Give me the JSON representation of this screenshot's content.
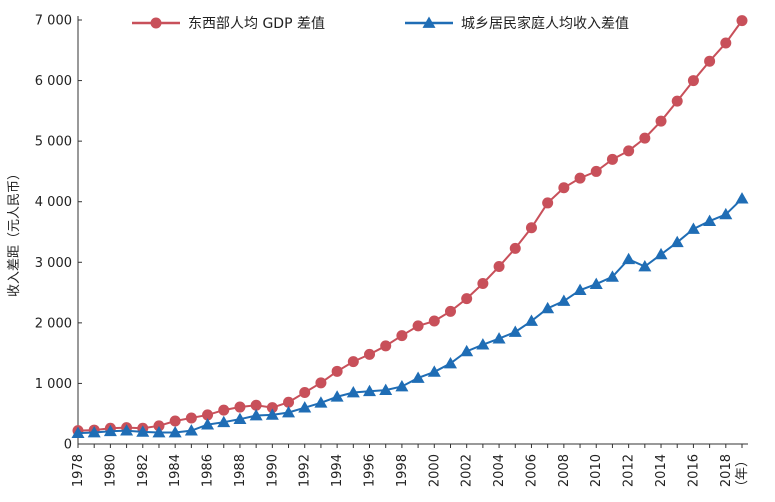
{
  "chart_data": {
    "type": "line",
    "ylabel": "收入差距（元人民币）",
    "x_unit_label": "（年）",
    "ylim": [
      0,
      7000
    ],
    "yticks": [
      "0",
      "1 000",
      "2 000",
      "3 000",
      "4 000",
      "5 000",
      "6 000",
      "7 000"
    ],
    "x_tick_labels": [
      "1978",
      "1980",
      "1982",
      "1984",
      "1986",
      "1988",
      "1990",
      "1992",
      "1994",
      "1996",
      "1998",
      "2000",
      "2002",
      "2004",
      "2006",
      "2008",
      "2010",
      "2012",
      "2014",
      "2016",
      "2018"
    ],
    "x": [
      1978,
      1979,
      1980,
      1981,
      1982,
      1983,
      1984,
      1985,
      1986,
      1987,
      1988,
      1989,
      1990,
      1991,
      1992,
      1993,
      1994,
      1995,
      1996,
      1997,
      1998,
      1999,
      2000,
      2001,
      2002,
      2003,
      2004,
      2005,
      2006,
      2007,
      2008,
      2009,
      2010,
      2011,
      2012,
      2013,
      2014,
      2015,
      2016,
      2017,
      2018,
      2019
    ],
    "series": [
      {
        "name": "东西部人均 GDP 差值",
        "color": "#c8505a",
        "marker": "circle",
        "values": [
          220,
          230,
          260,
          270,
          260,
          300,
          380,
          430,
          480,
          560,
          610,
          640,
          600,
          690,
          850,
          1010,
          1200,
          1360,
          1480,
          1620,
          1790,
          1950,
          2030,
          2190,
          2400,
          2650,
          2930,
          3230,
          3570,
          3980,
          4230,
          4390,
          4500,
          4700,
          4840,
          5050,
          5330,
          5660,
          6000,
          6320,
          6620,
          6990
        ]
      },
      {
        "name": "城乡居民家庭人均收入差值",
        "color": "#1f6db5",
        "marker": "triangle",
        "values": [
          180,
          190,
          210,
          220,
          200,
          190,
          190,
          220,
          320,
          360,
          410,
          470,
          480,
          520,
          600,
          680,
          780,
          850,
          870,
          890,
          950,
          1090,
          1190,
          1330,
          1530,
          1640,
          1740,
          1850,
          2030,
          2240,
          2360,
          2540,
          2640,
          2760,
          3050,
          2930,
          3130,
          3330,
          3550,
          3680,
          3790,
          4050
        ]
      }
    ],
    "legend_position": "top",
    "grid": false
  }
}
